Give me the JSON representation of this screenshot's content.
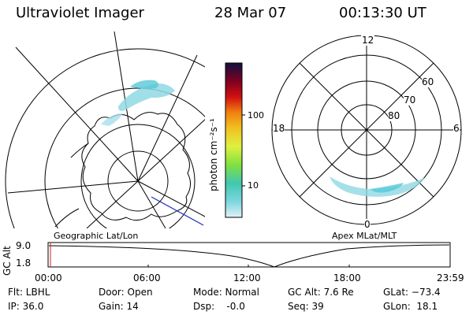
{
  "header": {
    "title": "Ultraviolet Imager",
    "date": "28 Mar 07",
    "time": "00:13:30 UT"
  },
  "colorbar": {
    "label": "photon cm⁻²s⁻¹",
    "ticks": [
      "100",
      "10"
    ]
  },
  "polar_plot": {
    "mlt_labels": [
      "12",
      "18",
      "6",
      "0"
    ],
    "mlat_labels": [
      "60",
      "70",
      "80"
    ]
  },
  "map_labels": {
    "left": "Geographic Lat/Lon",
    "right": "Apex MLat/MLT"
  },
  "altitude_plot": {
    "axis_label": "GC Alt",
    "y_ticks": [
      "9.0",
      "1.8"
    ],
    "x_ticks": [
      "00:00",
      "06:00",
      "12:00",
      "18:00",
      "23:59"
    ]
  },
  "info": {
    "flt": "Flt: LBHL",
    "ip": "IP: 36.0",
    "door": "Door: Open",
    "gain": "Gain: 14",
    "mode": "Mode: Normal",
    "dsp": "Dsp:    -0.0",
    "gcalt": "GC Alt: 7.6 Re",
    "seq": "Seq: 39",
    "glat": "GLat: −73.4",
    "glon": "GLon:  18.1"
  }
}
